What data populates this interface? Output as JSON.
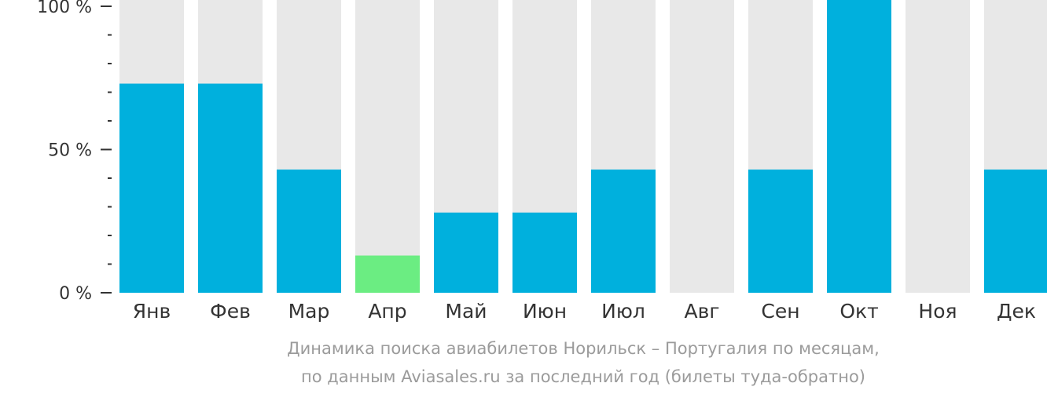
{
  "chart_data": {
    "type": "bar",
    "categories": [
      "Янв",
      "Фев",
      "Мар",
      "Апр",
      "Май",
      "Июн",
      "Июл",
      "Авг",
      "Сен",
      "Окт",
      "Ноя",
      "Дек"
    ],
    "values": [
      73,
      73,
      43,
      13,
      28,
      28,
      43,
      0,
      43,
      100,
      0,
      43
    ],
    "ylim": [
      0,
      100
    ],
    "yticks": [
      {
        "value": 0,
        "label": "0 %"
      },
      {
        "value": 50,
        "label": "50 %"
      },
      {
        "value": 100,
        "label": "100 %"
      }
    ],
    "minor_tick_step": 10,
    "highlight_index": 3,
    "colors": {
      "bar": "#00b0dd",
      "highlight": "#6bed82",
      "background": "#e8e8e8",
      "tick": "#333333"
    }
  },
  "caption": {
    "line1": "Динамика поиска авиабилетов Норильск – Португалия по месяцам,",
    "line2": "по данным Aviasales.ru за последний год (билеты туда-обратно)"
  }
}
